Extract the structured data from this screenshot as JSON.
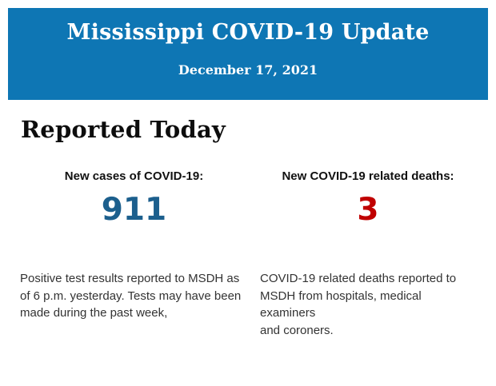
{
  "header": {
    "title": "Mississippi COVID-19 Update",
    "date": "December 17, 2021",
    "background_color": "#0e76b4",
    "text_color": "#ffffff"
  },
  "reported": {
    "heading": "Reported Today"
  },
  "stats": {
    "cases": {
      "label": "New cases of COVID-19:",
      "value": "911",
      "value_color": "#1c5f8d",
      "description": "Positive test results reported to MSDH as\nof 6 p.m. yesterday. Tests may have been\nmade during the past week,"
    },
    "deaths": {
      "label": "New COVID-19 related deaths:",
      "value": "3",
      "value_color": "#c00000",
      "description": "COVID-19 related deaths reported to\nMSDH from hospitals, medical examiners\nand coroners."
    }
  }
}
